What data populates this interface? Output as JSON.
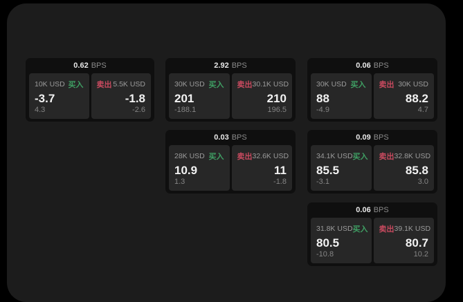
{
  "labels": {
    "bps_unit": "BPS",
    "buy": "买入",
    "sell": "卖出"
  },
  "colors": {
    "outer_bg": "#000000",
    "window_bg": "#1c1c1c",
    "card_bg": "#0f0f0f",
    "tile_bg": "#272727",
    "buy_green": "#3f9e63",
    "sell_red": "#c84a5f",
    "value_white": "#f2f2f2",
    "muted_gray": "#8b8b8b"
  },
  "cards": [
    {
      "bps": "0.62",
      "buy": {
        "amount": "10K USD",
        "price": "-3.7",
        "sub": "4.3"
      },
      "sell": {
        "amount": "5.5K USD",
        "price": "-1.8",
        "sub": "-2.6"
      }
    },
    {
      "bps": "2.92",
      "buy": {
        "amount": "30K USD",
        "price": "201",
        "sub": "-188.1"
      },
      "sell": {
        "amount": "30.1K USD",
        "price": "210",
        "sub": "196.5"
      }
    },
    {
      "bps": "0.06",
      "buy": {
        "amount": "30K USD",
        "price": "88",
        "sub": "-4.9"
      },
      "sell": {
        "amount": "30K USD",
        "price": "88.2",
        "sub": "4.7"
      }
    },
    {
      "bps": "0.03",
      "buy": {
        "amount": "28K USD",
        "price": "10.9",
        "sub": "1.3"
      },
      "sell": {
        "amount": "32.6K USD",
        "price": "11",
        "sub": "-1.8"
      }
    },
    {
      "bps": "0.09",
      "buy": {
        "amount": "34.1K USD",
        "price": "85.5",
        "sub": "-3.1"
      },
      "sell": {
        "amount": "32.8K USD",
        "price": "85.8",
        "sub": "3.0"
      }
    },
    {
      "bps": "0.06",
      "buy": {
        "amount": "31.8K USD",
        "price": "80.5",
        "sub": "-10.8"
      },
      "sell": {
        "amount": "39.1K USD",
        "price": "80.7",
        "sub": "10.2"
      }
    }
  ]
}
